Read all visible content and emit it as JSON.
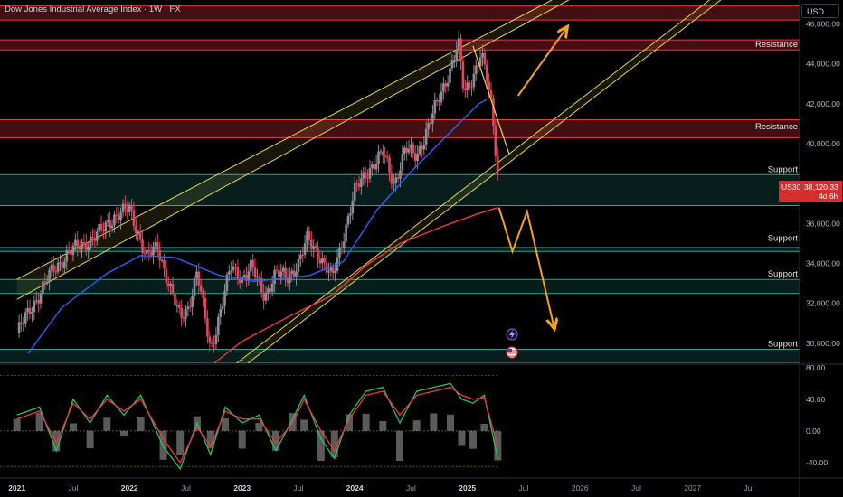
{
  "header": {
    "title": "Dow Jones Industrial Average Index · 1W · FX",
    "currency": "USD"
  },
  "price_badge": {
    "symbol": "US30",
    "price": "38,120.33",
    "countdown": "4d 6h",
    "color": "#d32f2f"
  },
  "colors": {
    "bullish": "#8a8e97",
    "bearish": "#e0475b",
    "ma_blue": "#2962ff",
    "ma_red": "#f23645",
    "channel": "#e6d74a",
    "projection": "#f7a21b",
    "support_line": "#26a69a",
    "resistance_line": "#f23645",
    "osc_green": "#22c55e",
    "osc_red": "#f23645"
  },
  "icons": [
    "lightning-event-icon",
    "us-flag-event-icon"
  ],
  "chart_data": [
    {
      "type": "candlestick",
      "title": "Dow Jones Industrial Average Index · 1W · FX",
      "ylim": [
        29000,
        47200
      ],
      "y_ticks": [
        30000,
        32000,
        34000,
        36000,
        38000,
        40000,
        42000,
        44000,
        46000
      ],
      "y_tick_labels": [
        "30,000.00",
        "32,000.00",
        "34,000.00",
        "36,000.00",
        "38,000.00",
        "40,000.00",
        "42,000.00",
        "44,000.00",
        "46,000.00"
      ],
      "x_tick_labels": [
        "2021",
        "Jul",
        "2022",
        "Jul",
        "2023",
        "Jul",
        "2024",
        "Jul",
        "2025",
        "Jul",
        "2026",
        "Jul",
        "2027",
        "Jul"
      ],
      "bold_x_ticks": [
        "2021",
        "2022",
        "2023",
        "2024",
        "2025"
      ],
      "last_price": 38120.33,
      "price_path": [
        [
          2021.0,
          30500
        ],
        [
          2021.15,
          32000
        ],
        [
          2021.3,
          33500
        ],
        [
          2021.45,
          34500
        ],
        [
          2021.6,
          35000
        ],
        [
          2021.75,
          35600
        ],
        [
          2021.87,
          36400
        ],
        [
          2022.0,
          36700
        ],
        [
          2022.08,
          35500
        ],
        [
          2022.15,
          34300
        ],
        [
          2022.25,
          34800
        ],
        [
          2022.35,
          33000
        ],
        [
          2022.45,
          31200
        ],
        [
          2022.52,
          31800
        ],
        [
          2022.6,
          33600
        ],
        [
          2022.72,
          29600
        ],
        [
          2022.8,
          31500
        ],
        [
          2022.9,
          33800
        ],
        [
          2023.0,
          33300
        ],
        [
          2023.08,
          33800
        ],
        [
          2023.2,
          32400
        ],
        [
          2023.3,
          33500
        ],
        [
          2023.4,
          33300
        ],
        [
          2023.5,
          34000
        ],
        [
          2023.58,
          35200
        ],
        [
          2023.68,
          34500
        ],
        [
          2023.8,
          33200
        ],
        [
          2023.9,
          35400
        ],
        [
          2024.0,
          37600
        ],
        [
          2024.12,
          38700
        ],
        [
          2024.25,
          39500
        ],
        [
          2024.35,
          38000
        ],
        [
          2024.45,
          39700
        ],
        [
          2024.55,
          39400
        ],
        [
          2024.65,
          40800
        ],
        [
          2024.75,
          42300
        ],
        [
          2024.85,
          43800
        ],
        [
          2024.92,
          45000
        ],
        [
          2024.97,
          42500
        ],
        [
          2025.05,
          43400
        ],
        [
          2025.12,
          44500
        ],
        [
          2025.17,
          43300
        ],
        [
          2025.22,
          41700
        ],
        [
          2025.27,
          38500
        ]
      ],
      "zones": [
        {
          "name": "Resistance",
          "kind": "resistance",
          "from": 46200,
          "to": 46900
        },
        {
          "name": "Resistance",
          "kind": "resistance",
          "from": 44700,
          "to": 45200
        },
        {
          "name": "Resistance",
          "kind": "resistance",
          "from": 40300,
          "to": 41200
        },
        {
          "name": "Support",
          "kind": "support",
          "from": 36900,
          "to": 38450
        },
        {
          "name": "Support",
          "kind": "support",
          "from": 34600,
          "to": 34800
        },
        {
          "name": "Support",
          "kind": "support",
          "from": 32500,
          "to": 33200
        },
        {
          "name": "Support",
          "kind": "support",
          "from": 29000,
          "to": 29700
        }
      ],
      "zone_labels": [
        {
          "text": "Resistance",
          "y": 44700
        },
        {
          "text": "Resistance",
          "y": 40600
        },
        {
          "text": "Support",
          "y": 38450
        },
        {
          "text": "Support",
          "y": 35000
        },
        {
          "text": "Support",
          "y": 33200
        },
        {
          "text": "Support",
          "y": 29700
        }
      ],
      "moving_averages": [
        {
          "color": "#2962ff",
          "points": [
            [
              2021.1,
              29500
            ],
            [
              2021.4,
              31800
            ],
            [
              2021.8,
              33500
            ],
            [
              2022.1,
              34400
            ],
            [
              2022.4,
              34300
            ],
            [
              2022.8,
              33400
            ],
            [
              2023.1,
              33100
            ],
            [
              2023.6,
              33400
            ],
            [
              2023.9,
              34100
            ],
            [
              2024.2,
              36700
            ],
            [
              2024.5,
              38600
            ],
            [
              2024.8,
              40300
            ],
            [
              2025.1,
              42000
            ],
            [
              2025.17,
              42200
            ]
          ]
        },
        {
          "color": "#f23645",
          "points": [
            [
              2022.75,
              29000
            ],
            [
              2023.0,
              30100
            ],
            [
              2023.4,
              31300
            ],
            [
              2023.8,
              32400
            ],
            [
              2024.1,
              33900
            ],
            [
              2024.4,
              35000
            ],
            [
              2024.8,
              35900
            ],
            [
              2025.1,
              36500
            ],
            [
              2025.27,
              36800
            ]
          ]
        }
      ],
      "channel_lines": [
        {
          "from": [
            2021.0,
            32200
          ],
          "to": [
            2025.9,
            47200
          ]
        },
        {
          "from": [
            2021.0,
            33200
          ],
          "to": [
            2025.75,
            47200
          ]
        },
        {
          "from": [
            2022.95,
            29000
          ],
          "to": [
            2027.15,
            47200
          ]
        },
        {
          "from": [
            2023.05,
            29000
          ],
          "to": [
            2027.25,
            47200
          ]
        }
      ],
      "projection_arrows": [
        [
          [
            2025.45,
            42400
          ],
          [
            2025.88,
            45800
          ]
        ],
        [
          [
            2025.28,
            36800
          ],
          [
            2025.4,
            34600
          ],
          [
            2025.53,
            36600
          ],
          [
            2025.77,
            30800
          ]
        ]
      ],
      "trend_line": [
        [
          2025.05,
          44900
        ],
        [
          2025.37,
          39500
        ]
      ]
    },
    {
      "type": "line",
      "name": "oscillator",
      "ylim": [
        -55,
        82
      ],
      "y_ticks": [
        80,
        40,
        0,
        -40
      ],
      "y_tick_labels": [
        "80.00",
        "40.00",
        "0.00",
        "-40.00"
      ],
      "series": [
        {
          "color": "#22c55e",
          "points": [
            [
              2021.0,
              20
            ],
            [
              2021.2,
              30
            ],
            [
              2021.35,
              -25
            ],
            [
              2021.5,
              40
            ],
            [
              2021.65,
              10
            ],
            [
              2021.8,
              45
            ],
            [
              2021.95,
              20
            ],
            [
              2022.1,
              45
            ],
            [
              2022.3,
              -20
            ],
            [
              2022.45,
              -48
            ],
            [
              2022.6,
              10
            ],
            [
              2022.72,
              -30
            ],
            [
              2022.85,
              30
            ],
            [
              2023.0,
              10
            ],
            [
              2023.15,
              20
            ],
            [
              2023.3,
              -25
            ],
            [
              2023.45,
              15
            ],
            [
              2023.55,
              45
            ],
            [
              2023.7,
              -10
            ],
            [
              2023.82,
              -35
            ],
            [
              2023.95,
              20
            ],
            [
              2024.1,
              50
            ],
            [
              2024.25,
              55
            ],
            [
              2024.4,
              10
            ],
            [
              2024.55,
              50
            ],
            [
              2024.7,
              55
            ],
            [
              2024.85,
              60
            ],
            [
              2024.95,
              40
            ],
            [
              2025.05,
              35
            ],
            [
              2025.15,
              45
            ],
            [
              2025.27,
              -35
            ]
          ]
        },
        {
          "color": "#f23645",
          "points": [
            [
              2021.0,
              15
            ],
            [
              2021.2,
              25
            ],
            [
              2021.35,
              -15
            ],
            [
              2021.5,
              35
            ],
            [
              2021.65,
              15
            ],
            [
              2021.8,
              40
            ],
            [
              2021.95,
              25
            ],
            [
              2022.1,
              40
            ],
            [
              2022.3,
              -10
            ],
            [
              2022.45,
              -40
            ],
            [
              2022.6,
              5
            ],
            [
              2022.72,
              -20
            ],
            [
              2022.85,
              25
            ],
            [
              2023.0,
              15
            ],
            [
              2023.15,
              15
            ],
            [
              2023.3,
              -15
            ],
            [
              2023.45,
              10
            ],
            [
              2023.55,
              40
            ],
            [
              2023.7,
              0
            ],
            [
              2023.82,
              -25
            ],
            [
              2023.95,
              15
            ],
            [
              2024.1,
              45
            ],
            [
              2024.25,
              50
            ],
            [
              2024.4,
              20
            ],
            [
              2024.55,
              45
            ],
            [
              2024.7,
              50
            ],
            [
              2024.85,
              55
            ],
            [
              2024.95,
              45
            ],
            [
              2025.05,
              40
            ],
            [
              2025.15,
              42
            ],
            [
              2025.27,
              -20
            ]
          ]
        }
      ]
    }
  ]
}
